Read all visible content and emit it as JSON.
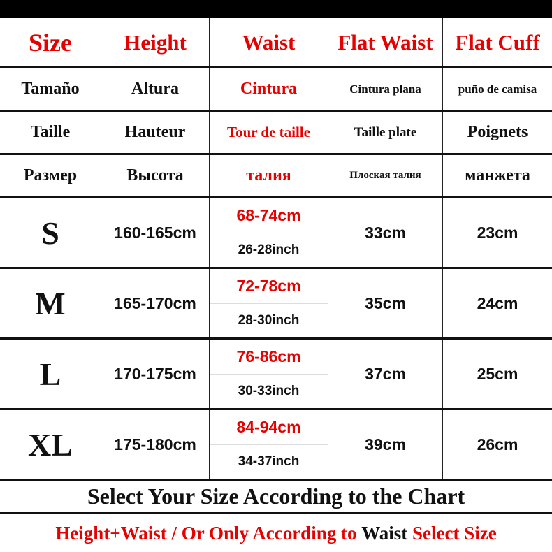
{
  "header": [
    "Size",
    "Height",
    "Waist",
    "Flat Waist",
    "Flat Cuff"
  ],
  "translations": [
    [
      "Tamaño",
      "Altura",
      "Cintura",
      "Cintura plana",
      "puño de camisa"
    ],
    [
      "Taille",
      "Hauteur",
      "Tour de taille",
      "Taille plate",
      "Poignets"
    ],
    [
      "Размер",
      "Высота",
      "талия",
      "Плоская талия",
      "манжета"
    ]
  ],
  "sizes": [
    {
      "size": "S",
      "height": "160-165cm",
      "waist_cm": "68-74cm",
      "waist_inch": "26-28inch",
      "flat_waist": "33cm",
      "flat_cuff": "23cm"
    },
    {
      "size": "M",
      "height": "165-170cm",
      "waist_cm": "72-78cm",
      "waist_inch": "28-30inch",
      "flat_waist": "35cm",
      "flat_cuff": "24cm"
    },
    {
      "size": "L",
      "height": "170-175cm",
      "waist_cm": "76-86cm",
      "waist_inch": "30-33inch",
      "flat_waist": "37cm",
      "flat_cuff": "25cm"
    },
    {
      "size": "XL",
      "height": "175-180cm",
      "waist_cm": "84-94cm",
      "waist_inch": "34-37inch",
      "flat_waist": "39cm",
      "flat_cuff": "26cm"
    }
  ],
  "footer": {
    "line1": "Select Your Size According to the Chart",
    "line2_red_a": "Height+Waist / Or Only According to",
    "line2_black": "Waist",
    "line2_red_b": "Select Size"
  },
  "colors": {
    "accent": "#e60000",
    "text": "#111111",
    "bar": "#000000"
  }
}
